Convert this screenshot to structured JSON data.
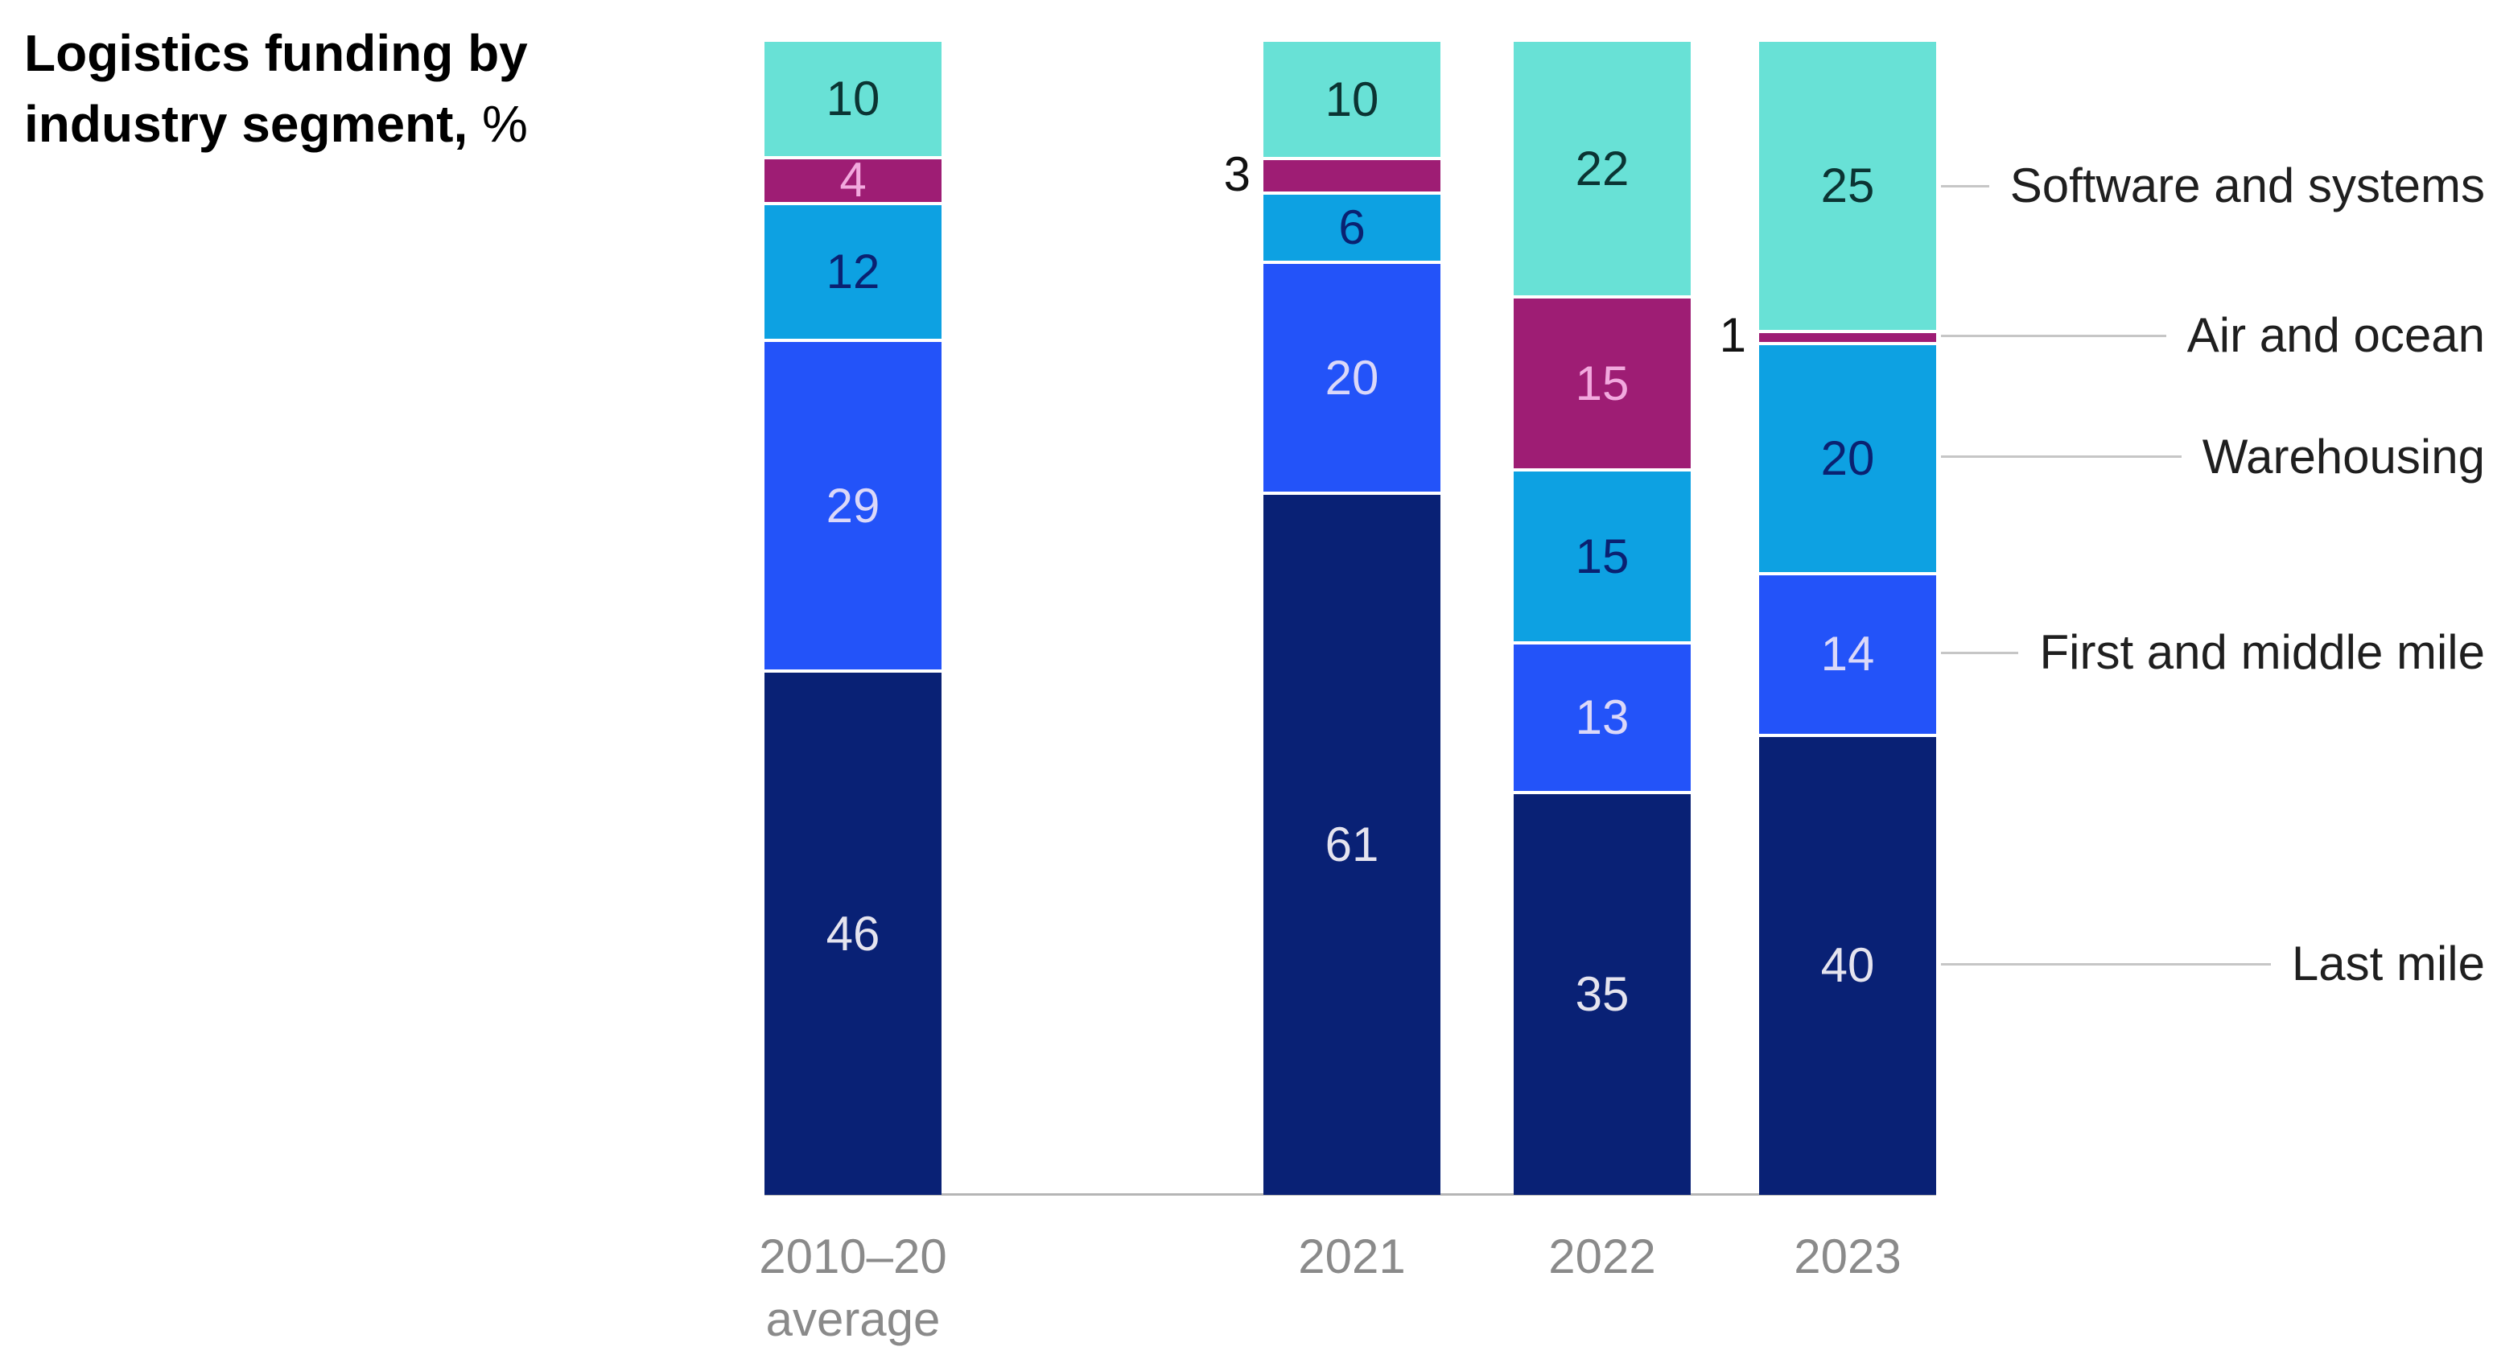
{
  "title": {
    "line1": "Logistics funding by",
    "line2_bold": "industry segment,",
    "line2_unit": "%"
  },
  "chart_data": {
    "type": "bar",
    "stacked": true,
    "orientation": "vertical",
    "unit": "%",
    "title": "Logistics funding by industry segment, %",
    "categories": [
      [
        "2010–20",
        "average"
      ],
      [
        "2021"
      ],
      [
        "2022"
      ],
      [
        "2023"
      ]
    ],
    "series": [
      {
        "name": "Software and systems",
        "color": "#68E1D6",
        "label_color": "#0B3433",
        "values": [
          10,
          10,
          22,
          25
        ]
      },
      {
        "name": "Air and ocean",
        "color": "#9E1D74",
        "label_color": "#F2A9DE",
        "values": [
          4,
          3,
          15,
          1
        ]
      },
      {
        "name": "Warehousing",
        "color": "#0DA1E2",
        "label_color": "#0A2171",
        "values": [
          12,
          6,
          15,
          20
        ]
      },
      {
        "name": "First and middle mile",
        "color": "#2353F9",
        "label_color": "#DBD8F9",
        "values": [
          29,
          20,
          13,
          14
        ]
      },
      {
        "name": "Last mile",
        "color": "#092175",
        "label_color": "#E5E4EF",
        "values": [
          46,
          61,
          35,
          40
        ]
      }
    ],
    "outside_labels": [
      {
        "category_index": 1,
        "series": "Air and ocean",
        "value": 3
      },
      {
        "category_index": 3,
        "series": "Air and ocean",
        "value": 1
      }
    ],
    "legend_position": "right",
    "grid": false,
    "axis_line_color": "#b5b5b5",
    "legend_line_color": "#c6c6c6",
    "axis_label_color": "#8a8a8a",
    "outside_label_color": "#111111",
    "ylim": [
      0,
      100
    ]
  }
}
